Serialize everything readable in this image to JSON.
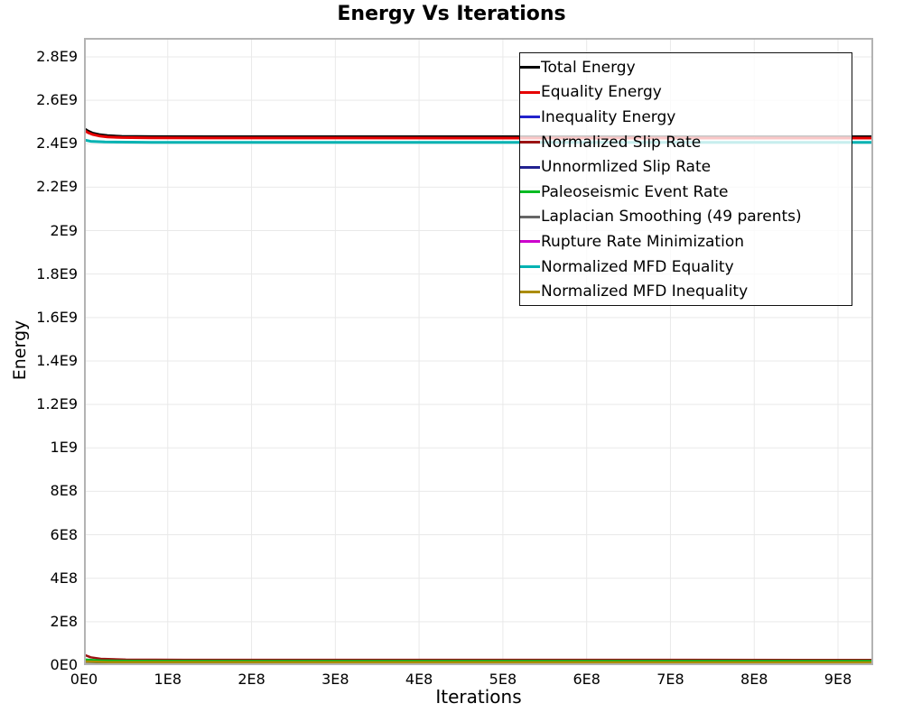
{
  "chart_data": {
    "type": "line",
    "title": "Energy Vs Iterations",
    "xlabel": "Iterations",
    "ylabel": "Energy",
    "xlim": [
      0,
      942000000
    ],
    "ylim": [
      0,
      2887000000
    ],
    "grid": true,
    "grid_color": "#e9e9e9",
    "plot_border_color": "#b3b3b3",
    "legend_position": "top-right",
    "legend_border_color": "#111111",
    "x_ticks": [
      {
        "label": "0E0",
        "value": 0
      },
      {
        "label": "1E8",
        "value": 100000000
      },
      {
        "label": "2E8",
        "value": 200000000
      },
      {
        "label": "3E8",
        "value": 300000000
      },
      {
        "label": "4E8",
        "value": 400000000
      },
      {
        "label": "5E8",
        "value": 500000000
      },
      {
        "label": "6E8",
        "value": 600000000
      },
      {
        "label": "7E8",
        "value": 700000000
      },
      {
        "label": "8E8",
        "value": 800000000
      },
      {
        "label": "9E8",
        "value": 900000000
      }
    ],
    "y_ticks": [
      {
        "label": "0E0",
        "value": 0
      },
      {
        "label": "2E8",
        "value": 200000000
      },
      {
        "label": "4E8",
        "value": 400000000
      },
      {
        "label": "6E8",
        "value": 600000000
      },
      {
        "label": "8E8",
        "value": 800000000
      },
      {
        "label": "1E9",
        "value": 1000000000
      },
      {
        "label": "1.2E9",
        "value": 1200000000
      },
      {
        "label": "1.4E9",
        "value": 1400000000
      },
      {
        "label": "1.6E9",
        "value": 1600000000
      },
      {
        "label": "1.8E9",
        "value": 1800000000
      },
      {
        "label": "2E9",
        "value": 2000000000
      },
      {
        "label": "2.2E9",
        "value": 2200000000
      },
      {
        "label": "2.4E9",
        "value": 2400000000
      },
      {
        "label": "2.6E9",
        "value": 2600000000
      },
      {
        "label": "2.8E9",
        "value": 2800000000
      }
    ],
    "series": [
      {
        "name": "Total Energy",
        "color": "#000000",
        "width": 3,
        "points": [
          [
            0,
            2470000000
          ],
          [
            5000000,
            2458000000
          ],
          [
            10000000,
            2449000000
          ],
          [
            18000000,
            2442000000
          ],
          [
            28000000,
            2437000000
          ],
          [
            45000000,
            2434000000
          ],
          [
            80000000,
            2432500000
          ],
          [
            150000000,
            2432000000
          ],
          [
            942000000,
            2432000000
          ]
        ]
      },
      {
        "name": "Equality Energy",
        "color": "#e60000",
        "width": 3,
        "points": [
          [
            0,
            2462000000
          ],
          [
            5000000,
            2451000000
          ],
          [
            10000000,
            2443000000
          ],
          [
            18000000,
            2436000000
          ],
          [
            28000000,
            2431000000
          ],
          [
            45000000,
            2428500000
          ],
          [
            80000000,
            2427000000
          ],
          [
            150000000,
            2426200000
          ],
          [
            942000000,
            2426000000
          ]
        ]
      },
      {
        "name": "Inequality Energy",
        "color": "#2222cc",
        "width": 2.5,
        "points": [
          [
            0,
            4000000
          ],
          [
            942000000,
            3000000
          ]
        ]
      },
      {
        "name": "Normalized Slip Rate",
        "color": "#9b1313",
        "width": 2.5,
        "points": [
          [
            0,
            48000000
          ],
          [
            8000000,
            36000000
          ],
          [
            20000000,
            29000000
          ],
          [
            50000000,
            25500000
          ],
          [
            120000000,
            24500000
          ],
          [
            942000000,
            24000000
          ]
        ]
      },
      {
        "name": "Unnormlized Slip Rate",
        "color": "#222290",
        "width": 2.5,
        "points": [
          [
            0,
            3000000
          ],
          [
            942000000,
            2500000
          ]
        ]
      },
      {
        "name": "Paleoseismic Event Rate",
        "color": "#00bb22",
        "width": 2.5,
        "points": [
          [
            0,
            26000000
          ],
          [
            20000000,
            21000000
          ],
          [
            60000000,
            19500000
          ],
          [
            942000000,
            19000000
          ]
        ]
      },
      {
        "name": "Laplacian Smoothing (49 parents)",
        "color": "#666666",
        "width": 2.5,
        "points": [
          [
            0,
            6000000
          ],
          [
            942000000,
            5000000
          ]
        ]
      },
      {
        "name": "Rupture Rate Minimization",
        "color": "#cc00cc",
        "width": 2.5,
        "points": [
          [
            0,
            2000000
          ],
          [
            942000000,
            1500000
          ]
        ]
      },
      {
        "name": "Normalized MFD Equality",
        "color": "#00b2b2",
        "width": 3,
        "points": [
          [
            0,
            2418000000
          ],
          [
            8000000,
            2411000000
          ],
          [
            25000000,
            2408000000
          ],
          [
            80000000,
            2406500000
          ],
          [
            942000000,
            2406000000
          ]
        ]
      },
      {
        "name": "Normalized MFD Inequality",
        "color": "#ab8c00",
        "width": 2.5,
        "points": [
          [
            0,
            17000000
          ],
          [
            30000000,
            14000000
          ],
          [
            942000000,
            13000000
          ]
        ]
      }
    ]
  }
}
